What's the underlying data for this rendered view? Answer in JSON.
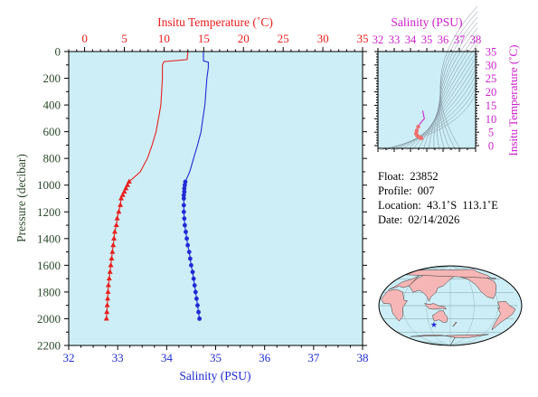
{
  "colors": {
    "temperature": "#e8201e",
    "salinity": "#1f2bd4",
    "pressure_axis": "#2c4a2c",
    "ts_axis": "#cc22cc",
    "plot_bg": "#cdeef6",
    "land": "#f6b6b6",
    "ocean": "#cdeef6",
    "marker": "#1f2bd4"
  },
  "info": {
    "float_label": "Float:",
    "float_value": "23852",
    "profile_label": "Profile:",
    "profile_value": "007",
    "location_label": "Location:",
    "location_value": "43.1˚S  113.1˚E",
    "date_label": "Date:",
    "date_value": "02/14/2026"
  },
  "map": {
    "marker_icon": "star-icon",
    "marker_lat": -43.1,
    "marker_lon": 113.1
  },
  "chart_data": [
    {
      "type": "line",
      "title": "",
      "ylabel": "Pressure (decibar)",
      "y_ticks": [
        "0",
        "200",
        "400",
        "600",
        "800",
        "1000",
        "1200",
        "1400",
        "1600",
        "1800",
        "2000",
        "2200"
      ],
      "ylim": [
        2200,
        0
      ],
      "y_inverted": true,
      "top_axis": {
        "label": "Insitu Temperature (˚C)",
        "ticks": [
          "0",
          "5",
          "10",
          "15",
          "20",
          "25",
          "30",
          "35"
        ],
        "lim": [
          -2,
          35
        ]
      },
      "bottom_axis": {
        "label": "Salinity (PSU)",
        "ticks": [
          "32",
          "33",
          "34",
          "35",
          "36",
          "37",
          "38"
        ],
        "lim": [
          32,
          38
        ]
      },
      "series": [
        {
          "variable": "temperature",
          "axis": "top",
          "marker": "triangle",
          "points": [
            {
              "x": 13.0,
              "y": 0
            },
            {
              "x": 12.9,
              "y": 60
            },
            {
              "x": 10.0,
              "y": 75
            },
            {
              "x": 9.8,
              "y": 100
            },
            {
              "x": 9.8,
              "y": 200
            },
            {
              "x": 9.7,
              "y": 300
            },
            {
              "x": 9.6,
              "y": 400
            },
            {
              "x": 9.3,
              "y": 500
            },
            {
              "x": 9.0,
              "y": 600
            },
            {
              "x": 8.5,
              "y": 700
            },
            {
              "x": 7.9,
              "y": 800
            },
            {
              "x": 7.0,
              "y": 900
            }
          ],
          "marked_points": [
            {
              "x": 5.6,
              "y": 975
            },
            {
              "x": 5.4,
              "y": 1000
            },
            {
              "x": 5.2,
              "y": 1025
            },
            {
              "x": 5.0,
              "y": 1050
            },
            {
              "x": 4.8,
              "y": 1075
            },
            {
              "x": 4.6,
              "y": 1100
            },
            {
              "x": 4.5,
              "y": 1150
            },
            {
              "x": 4.3,
              "y": 1200
            },
            {
              "x": 4.1,
              "y": 1250
            },
            {
              "x": 4.0,
              "y": 1300
            },
            {
              "x": 3.8,
              "y": 1350
            },
            {
              "x": 3.7,
              "y": 1400
            },
            {
              "x": 3.6,
              "y": 1450
            },
            {
              "x": 3.5,
              "y": 1500
            },
            {
              "x": 3.4,
              "y": 1550
            },
            {
              "x": 3.3,
              "y": 1600
            },
            {
              "x": 3.2,
              "y": 1650
            },
            {
              "x": 3.1,
              "y": 1700
            },
            {
              "x": 3.0,
              "y": 1750
            },
            {
              "x": 2.95,
              "y": 1800
            },
            {
              "x": 2.9,
              "y": 1850
            },
            {
              "x": 2.85,
              "y": 1900
            },
            {
              "x": 2.8,
              "y": 1950
            },
            {
              "x": 2.75,
              "y": 2000
            }
          ]
        },
        {
          "variable": "salinity",
          "axis": "bottom",
          "marker": "circle",
          "points": [
            {
              "x": 34.75,
              "y": 0
            },
            {
              "x": 34.75,
              "y": 70
            },
            {
              "x": 34.85,
              "y": 80
            },
            {
              "x": 34.85,
              "y": 120
            },
            {
              "x": 34.82,
              "y": 200
            },
            {
              "x": 34.8,
              "y": 300
            },
            {
              "x": 34.78,
              "y": 400
            },
            {
              "x": 34.74,
              "y": 500
            },
            {
              "x": 34.7,
              "y": 600
            },
            {
              "x": 34.63,
              "y": 700
            },
            {
              "x": 34.55,
              "y": 800
            },
            {
              "x": 34.47,
              "y": 900
            }
          ],
          "marked_points": [
            {
              "x": 34.38,
              "y": 975
            },
            {
              "x": 34.37,
              "y": 1000
            },
            {
              "x": 34.36,
              "y": 1025
            },
            {
              "x": 34.36,
              "y": 1050
            },
            {
              "x": 34.35,
              "y": 1075
            },
            {
              "x": 34.35,
              "y": 1100
            },
            {
              "x": 34.35,
              "y": 1150
            },
            {
              "x": 34.35,
              "y": 1200
            },
            {
              "x": 34.36,
              "y": 1250
            },
            {
              "x": 34.37,
              "y": 1300
            },
            {
              "x": 34.39,
              "y": 1350
            },
            {
              "x": 34.41,
              "y": 1400
            },
            {
              "x": 34.43,
              "y": 1450
            },
            {
              "x": 34.46,
              "y": 1500
            },
            {
              "x": 34.48,
              "y": 1550
            },
            {
              "x": 34.5,
              "y": 1600
            },
            {
              "x": 34.53,
              "y": 1650
            },
            {
              "x": 34.55,
              "y": 1700
            },
            {
              "x": 34.57,
              "y": 1750
            },
            {
              "x": 34.59,
              "y": 1800
            },
            {
              "x": 34.61,
              "y": 1850
            },
            {
              "x": 34.63,
              "y": 1900
            },
            {
              "x": 34.65,
              "y": 1950
            },
            {
              "x": 34.67,
              "y": 2000
            }
          ]
        }
      ]
    },
    {
      "type": "scatter",
      "title": "",
      "xlabel": "Salinity (PSU)",
      "ylabel": "Insitu Temperature (˚C)",
      "x_ticks": [
        "32",
        "33",
        "34",
        "35",
        "36",
        "37",
        "38"
      ],
      "y_ticks": [
        "0",
        "5",
        "10",
        "15",
        "20",
        "25",
        "30",
        "35"
      ],
      "xlim": [
        32,
        38
      ],
      "ylim": [
        -1,
        35
      ],
      "density_contours": true,
      "series": [
        {
          "variable": "t-s",
          "points": [
            {
              "x": 34.75,
              "y": 13.0
            },
            {
              "x": 34.85,
              "y": 10.0
            },
            {
              "x": 34.82,
              "y": 9.8
            },
            {
              "x": 34.78,
              "y": 9.6
            },
            {
              "x": 34.7,
              "y": 9.0
            },
            {
              "x": 34.55,
              "y": 7.9
            },
            {
              "x": 34.47,
              "y": 7.0
            },
            {
              "x": 34.38,
              "y": 5.6
            },
            {
              "x": 34.35,
              "y": 4.6
            },
            {
              "x": 34.35,
              "y": 4.3
            },
            {
              "x": 34.41,
              "y": 3.7
            },
            {
              "x": 34.5,
              "y": 3.3
            },
            {
              "x": 34.59,
              "y": 2.95
            },
            {
              "x": 34.67,
              "y": 2.75
            }
          ]
        }
      ]
    }
  ]
}
